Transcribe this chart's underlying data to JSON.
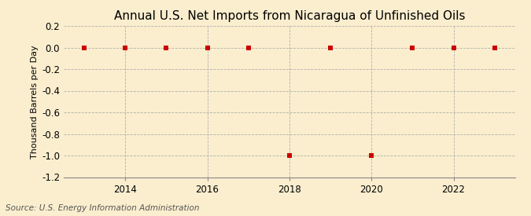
{
  "title": "Annual U.S. Net Imports from Nicaragua of Unfinished Oils",
  "ylabel": "Thousand Barrels per Day",
  "source": "Source: U.S. Energy Information Administration",
  "years": [
    2013,
    2014,
    2015,
    2016,
    2017,
    2018,
    2019,
    2020,
    2021,
    2022,
    2023
  ],
  "values": [
    0,
    0,
    0,
    0,
    0,
    -1,
    0,
    -1,
    0,
    0,
    0
  ],
  "ylim": [
    -1.2,
    0.2
  ],
  "yticks": [
    0.2,
    0.0,
    -0.2,
    -0.4,
    -0.6,
    -0.8,
    -1.0,
    -1.2
  ],
  "xlim": [
    2012.5,
    2023.5
  ],
  "xticks": [
    2014,
    2016,
    2018,
    2020,
    2022
  ],
  "marker_color": "#cc0000",
  "marker_size": 4,
  "grid_color": "#aaaaaa",
  "background_color": "#faeece",
  "title_fontsize": 11,
  "label_fontsize": 8,
  "tick_fontsize": 8.5,
  "source_fontsize": 7.5
}
